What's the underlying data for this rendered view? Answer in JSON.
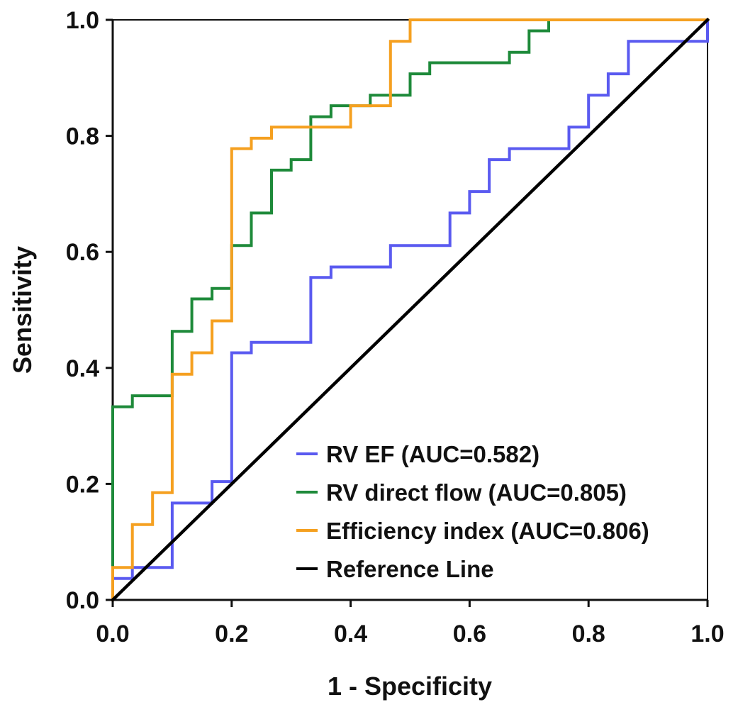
{
  "chart_data": {
    "type": "line",
    "title": "",
    "xlabel": "1 - Specificity",
    "ylabel": "Sensitivity",
    "xlim": [
      0,
      1
    ],
    "ylim": [
      0,
      1
    ],
    "xticks": [
      "0.0",
      "0.2",
      "0.4",
      "0.6",
      "0.8",
      "1.0"
    ],
    "yticks": [
      "0.0",
      "0.2",
      "0.4",
      "0.6",
      "0.8",
      "1.0"
    ],
    "grid": false,
    "legend_position": "bottom-right",
    "series": [
      {
        "name": "RV EF (AUC=0.582)",
        "color": "#5a5af0",
        "x": [
          0,
          0,
          0.033,
          0.033,
          0.1,
          0.1,
          0.167,
          0.167,
          0.2,
          0.2,
          0.233,
          0.233,
          0.333,
          0.333,
          0.367,
          0.367,
          0.467,
          0.467,
          0.567,
          0.567,
          0.6,
          0.6,
          0.633,
          0.633,
          0.667,
          0.667,
          0.767,
          0.767,
          0.8,
          0.8,
          0.833,
          0.833,
          0.867,
          0.867,
          1.0,
          1.0
        ],
        "y": [
          0,
          0.037,
          0.037,
          0.056,
          0.056,
          0.167,
          0.167,
          0.204,
          0.204,
          0.426,
          0.426,
          0.444,
          0.444,
          0.556,
          0.556,
          0.574,
          0.574,
          0.611,
          0.611,
          0.667,
          0.667,
          0.704,
          0.704,
          0.759,
          0.759,
          0.778,
          0.778,
          0.815,
          0.815,
          0.87,
          0.87,
          0.907,
          0.907,
          0.963,
          0.963,
          1.0
        ]
      },
      {
        "name": "RV direct flow (AUC=0.805)",
        "color": "#1e8a3a",
        "x": [
          0,
          0,
          0.033,
          0.033,
          0.1,
          0.1,
          0.133,
          0.133,
          0.167,
          0.167,
          0.2,
          0.2,
          0.233,
          0.233,
          0.267,
          0.267,
          0.3,
          0.3,
          0.333,
          0.333,
          0.367,
          0.367,
          0.4,
          0.4,
          0.433,
          0.433,
          0.5,
          0.5,
          0.533,
          0.533,
          0.667,
          0.667,
          0.7,
          0.7,
          0.733,
          0.733,
          1.0
        ],
        "y": [
          0,
          0.333,
          0.333,
          0.352,
          0.352,
          0.463,
          0.463,
          0.519,
          0.519,
          0.537,
          0.537,
          0.611,
          0.611,
          0.667,
          0.667,
          0.741,
          0.741,
          0.759,
          0.759,
          0.833,
          0.833,
          0.852,
          0.852,
          0.852,
          0.852,
          0.87,
          0.87,
          0.907,
          0.907,
          0.926,
          0.926,
          0.944,
          0.944,
          0.981,
          0.981,
          1.0,
          1.0
        ]
      },
      {
        "name": "Efficiency index (AUC=0.806)",
        "color": "#f5a020",
        "x": [
          0,
          0,
          0.033,
          0.033,
          0.067,
          0.067,
          0.1,
          0.1,
          0.133,
          0.133,
          0.167,
          0.167,
          0.2,
          0.2,
          0.233,
          0.233,
          0.267,
          0.267,
          0.4,
          0.4,
          0.467,
          0.467,
          0.5,
          0.5,
          1.0
        ],
        "y": [
          0,
          0.056,
          0.056,
          0.13,
          0.13,
          0.185,
          0.185,
          0.389,
          0.389,
          0.426,
          0.426,
          0.481,
          0.481,
          0.778,
          0.778,
          0.796,
          0.796,
          0.815,
          0.815,
          0.852,
          0.852,
          0.963,
          0.963,
          1.0,
          1.0
        ]
      },
      {
        "name": "Reference Line",
        "color": "#000000",
        "x": [
          0,
          1
        ],
        "y": [
          0,
          1
        ]
      }
    ]
  }
}
